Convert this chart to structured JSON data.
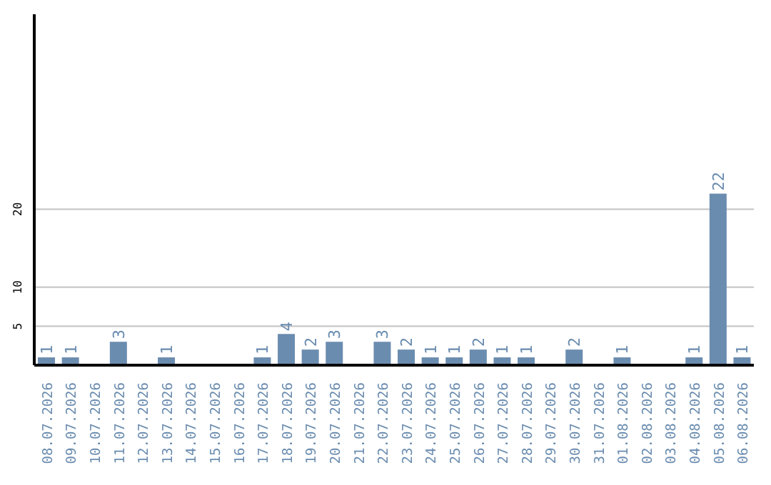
{
  "chart_data": {
    "type": "bar",
    "categories": [
      "08.07.2026",
      "09.07.2026",
      "10.07.2026",
      "11.07.2026",
      "12.07.2026",
      "13.07.2026",
      "14.07.2026",
      "15.07.2026",
      "16.07.2026",
      "17.07.2026",
      "18.07.2026",
      "19.07.2026",
      "20.07.2026",
      "21.07.2026",
      "22.07.2026",
      "23.07.2026",
      "24.07.2026",
      "25.07.2026",
      "26.07.2026",
      "27.07.2026",
      "28.07.2026",
      "29.07.2026",
      "30.07.2026",
      "31.07.2026",
      "01.08.2026",
      "02.08.2026",
      "03.08.2026",
      "04.08.2026",
      "05.08.2026",
      "06.08.2026"
    ],
    "values": [
      1,
      1,
      0,
      3,
      0,
      1,
      0,
      0,
      0,
      1,
      4,
      2,
      3,
      0,
      3,
      2,
      1,
      1,
      2,
      1,
      1,
      0,
      2,
      0,
      1,
      0,
      0,
      1,
      22,
      1
    ],
    "value_labels": [
      "1",
      "1",
      null,
      "3",
      null,
      "1",
      null,
      null,
      null,
      "1",
      "4",
      "2",
      "3",
      null,
      "3",
      "2",
      "1",
      "1",
      "2",
      "1",
      "1",
      null,
      "2",
      null,
      "1",
      null,
      null,
      "1",
      "22",
      "1"
    ],
    "color": "#6a8caf",
    "ylim": [
      0,
      45
    ],
    "yticks": [
      5,
      10,
      20
    ],
    "grid": "y"
  }
}
